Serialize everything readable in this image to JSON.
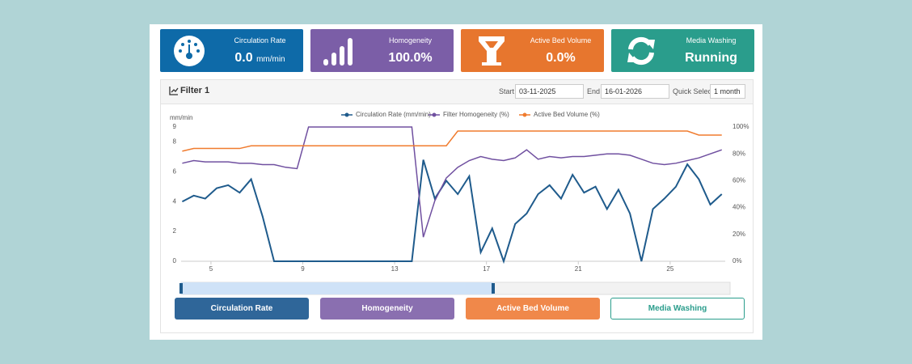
{
  "cards": [
    {
      "title": "Circulation Rate",
      "value": "0.0",
      "unit": "mm/min"
    },
    {
      "title": "Homogeneity",
      "value": "100.0%"
    },
    {
      "title": "Active Bed Volume",
      "value": "0.0%"
    },
    {
      "title": "Media Washing",
      "value": "Running"
    }
  ],
  "filter": {
    "title": "Filter 1",
    "start_label": "Start",
    "start": "03-11-2025",
    "end_label": "End",
    "end": "16-01-2026",
    "quick_label": "Quick Select",
    "quick": "1 month"
  },
  "buttons": [
    "Circulation Rate",
    "Homogeneity",
    "Active Bed Volume",
    "Media Washing"
  ],
  "chart_data": {
    "type": "line",
    "y_label": "mm/min",
    "x": [
      3.75,
      4.25,
      4.75,
      5.25,
      5.75,
      6.25,
      6.75,
      7.25,
      7.75,
      8.25,
      8.75,
      9.25,
      9.75,
      10.25,
      10.75,
      11.25,
      11.75,
      12.25,
      12.75,
      13.25,
      13.75,
      14.25,
      14.75,
      15.25,
      15.75,
      16.25,
      16.75,
      17.25,
      17.75,
      18.25,
      18.75,
      19.25,
      19.75,
      20.25,
      20.75,
      21.25,
      21.75,
      22.25,
      22.75,
      23.25,
      23.75,
      24.25,
      24.75,
      25.25,
      25.75,
      26.25,
      26.75,
      27.25
    ],
    "xlim": [
      3.7,
      27.4
    ],
    "xticks": [
      5,
      9,
      13,
      17,
      21,
      25
    ],
    "ylim": [
      0,
      9
    ],
    "yticks": [
      0,
      2,
      4,
      6,
      8,
      9
    ],
    "y2lim": [
      0,
      100
    ],
    "y2ticks": [
      {
        "value": 0,
        "label": "0%"
      },
      {
        "value": 20,
        "label": "20%"
      },
      {
        "value": 40,
        "label": "40%"
      },
      {
        "value": 60,
        "label": "60%"
      },
      {
        "value": 80,
        "label": "80%"
      },
      {
        "value": 100,
        "label": "100%"
      }
    ],
    "series": [
      {
        "name": "Circulation Rate (mm/min)",
        "color": "#1f5b8c",
        "width": 2,
        "values": [
          4.0,
          4.4,
          4.2,
          4.9,
          5.1,
          4.6,
          5.5,
          3.0,
          0,
          0,
          0,
          0,
          0,
          0,
          0,
          0,
          0,
          0,
          0,
          0,
          0,
          6.8,
          4.2,
          5.4,
          4.5,
          5.7,
          0.6,
          2.2,
          0,
          2.5,
          3.2,
          4.5,
          5.1,
          4.2,
          5.8,
          4.6,
          5.0,
          3.5,
          4.8,
          3.2,
          0,
          3.5,
          4.2,
          5.0,
          6.5,
          5.5,
          3.8,
          4.5
        ]
      },
      {
        "name": "Filter Homogeneity (%)",
        "color": "#7050a0",
        "width": 1.5,
        "axis": "y2",
        "values": [
          73,
          75,
          74,
          74,
          74,
          73,
          73,
          72,
          72,
          70,
          69,
          100,
          100,
          100,
          100,
          100,
          100,
          100,
          100,
          100,
          100,
          18,
          45,
          62,
          70,
          75,
          78,
          76,
          75,
          77,
          83,
          76,
          78,
          77,
          78,
          78,
          79,
          80,
          80,
          79,
          76,
          73,
          72,
          73,
          75,
          77,
          80,
          83
        ]
      },
      {
        "name": "Active Bed Volume (%)",
        "color": "#f07b2e",
        "width": 1.5,
        "axis": "y2",
        "values": [
          82,
          84,
          84,
          84,
          84,
          84,
          86,
          86,
          86,
          86,
          86,
          86,
          86,
          86,
          86,
          86,
          86,
          86,
          86,
          86,
          86,
          86,
          86,
          86,
          97,
          97,
          97,
          97,
          97,
          97,
          97,
          97,
          97,
          97,
          97,
          97,
          97,
          97,
          97,
          97,
          97,
          97,
          97,
          97,
          97,
          94,
          94,
          94
        ]
      }
    ]
  }
}
